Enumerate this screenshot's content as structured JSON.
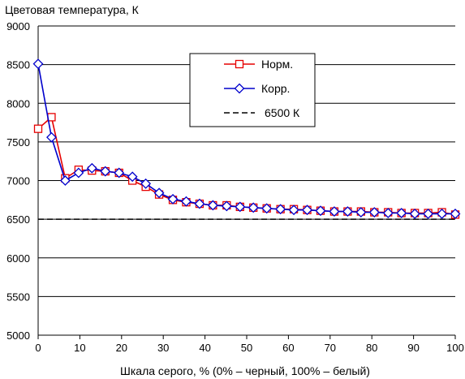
{
  "chart_data": {
    "type": "line",
    "title": "Цветовая температура, К",
    "xlabel": "Шкала серого, % (0% – черный, 100% – белый)",
    "xlim": [
      0,
      100
    ],
    "ylim": [
      5000,
      9000
    ],
    "x_ticks": [
      0,
      10,
      20,
      30,
      40,
      50,
      60,
      70,
      80,
      90,
      100
    ],
    "y_ticks": [
      5000,
      5500,
      6000,
      6500,
      7000,
      7500,
      8000,
      8500,
      9000
    ],
    "grid": "horizontal",
    "legend_position": "top-right",
    "colors": {
      "norm": "#e60000",
      "corr": "#0000cc",
      "ref": "#000000"
    },
    "series": [
      {
        "name": "Норм.",
        "marker": "square",
        "x": [
          0,
          3.2,
          6.5,
          9.7,
          12.9,
          16.1,
          19.4,
          22.6,
          25.8,
          29,
          32.3,
          35.5,
          38.7,
          41.9,
          45.2,
          48.4,
          51.6,
          54.8,
          58.1,
          61.3,
          64.5,
          67.7,
          71,
          74.2,
          77.4,
          80.6,
          83.9,
          87.1,
          90.3,
          93.5,
          96.8,
          100
        ],
        "values": [
          7670,
          7820,
          7030,
          7140,
          7130,
          7120,
          7100,
          7000,
          6920,
          6820,
          6750,
          6720,
          6700,
          6680,
          6680,
          6660,
          6650,
          6640,
          6630,
          6630,
          6620,
          6610,
          6600,
          6600,
          6600,
          6590,
          6590,
          6580,
          6580,
          6580,
          6590,
          6560
        ]
      },
      {
        "name": "Корр.",
        "marker": "diamond",
        "x": [
          0,
          3.2,
          6.5,
          9.7,
          12.9,
          16.1,
          19.4,
          22.6,
          25.8,
          29,
          32.3,
          35.5,
          38.7,
          41.9,
          45.2,
          48.4,
          51.6,
          54.8,
          58.1,
          61.3,
          64.5,
          67.7,
          71,
          74.2,
          77.4,
          80.6,
          83.9,
          87.1,
          90.3,
          93.5,
          96.8,
          100
        ],
        "values": [
          8510,
          7560,
          7000,
          7100,
          7160,
          7120,
          7100,
          7050,
          6960,
          6840,
          6760,
          6730,
          6700,
          6680,
          6670,
          6660,
          6650,
          6640,
          6630,
          6620,
          6620,
          6610,
          6600,
          6600,
          6590,
          6590,
          6580,
          6580,
          6570,
          6570,
          6570,
          6570
        ]
      },
      {
        "name": "6500 К",
        "line": "dashed",
        "x": [
          0,
          100
        ],
        "values": [
          6500,
          6500
        ]
      }
    ]
  }
}
